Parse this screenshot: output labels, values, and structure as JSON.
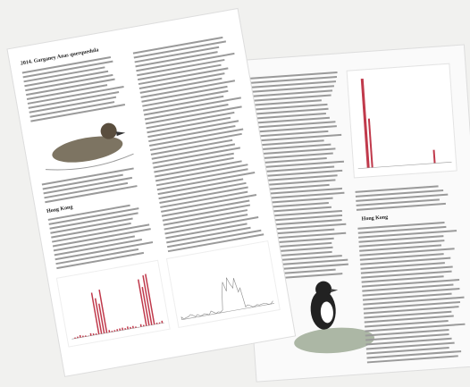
{
  "front_page": {
    "heading": "2014. Garganey Anas querquedula",
    "section": "Hong Kong"
  },
  "back_page": {
    "section": "Hong Kong"
  }
}
